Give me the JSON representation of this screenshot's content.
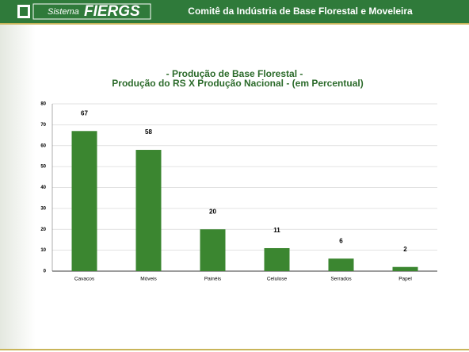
{
  "header": {
    "brand_prefix": "Sistema",
    "brand": "FIERGS",
    "title": "Comitê da Indústria de Base Florestal e Moveleira"
  },
  "chart_data": {
    "type": "bar",
    "title": "- Produção de Base Florestal -",
    "subtitle": "Produção do RS X Produção Nacional - (em Percentual)",
    "categories": [
      "Cavacos",
      "Móveis",
      "Painéis",
      "Celulose",
      "Serrados",
      "Papel"
    ],
    "values": [
      67,
      58,
      20,
      11,
      6,
      2
    ],
    "color": "#3b8630",
    "ylim": [
      0,
      80
    ],
    "yticks": [
      0,
      10,
      20,
      30,
      40,
      50,
      60,
      70,
      80
    ],
    "grid": true
  }
}
